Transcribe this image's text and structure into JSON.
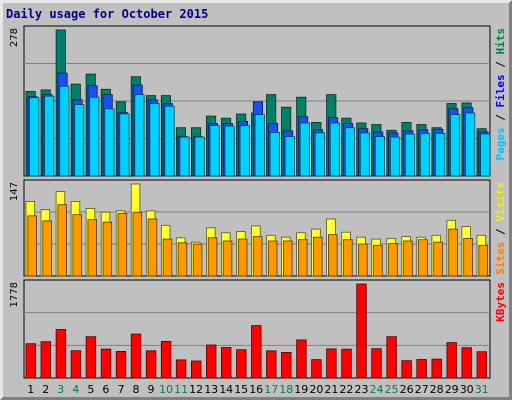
{
  "chart_data": {
    "type": "bar",
    "title": "Daily usage for October 2015",
    "days": [
      "1",
      "2",
      "3",
      "4",
      "5",
      "6",
      "7",
      "8",
      "9",
      "10",
      "11",
      "12",
      "13",
      "14",
      "15",
      "16",
      "17",
      "18",
      "19",
      "20",
      "21",
      "22",
      "23",
      "24",
      "25",
      "26",
      "27",
      "28",
      "29",
      "30",
      "31"
    ],
    "weekend_days": [
      "3",
      "4",
      "10",
      "11",
      "17",
      "18",
      "24",
      "25",
      "31"
    ],
    "panels": [
      {
        "name": "hits-files-pages",
        "max_label": "278",
        "ymax": 278,
        "right_labels": [
          {
            "text": "Pages",
            "color": "#00c8ff"
          },
          {
            "text": " / ",
            "color": "#000000"
          },
          {
            "text": "Files",
            "color": "#0000ff"
          },
          {
            "text": " / ",
            "color": "#000000"
          },
          {
            "text": "Hits",
            "color": "#008040"
          }
        ],
        "series": [
          {
            "name": "Hits",
            "color": "#008066",
            "values": [
              161,
              164,
              278,
              175,
              194,
              165,
              141,
              189,
              153,
              153,
              92,
              92,
              114,
              110,
              118,
              120,
              155,
              131,
              150,
              102,
              155,
              110,
              101,
              98,
              87,
              102,
              98,
              92,
              138,
              139,
              90
            ]
          },
          {
            "name": "Files",
            "color": "#1a4ff0",
            "values": [
              151,
              155,
              196,
              145,
              172,
              155,
              121,
              173,
              145,
              138,
              75,
              75,
              100,
              100,
              104,
              141,
              100,
              86,
              113,
              88,
              111,
              100,
              90,
              84,
              82,
              86,
              88,
              89,
              128,
              130,
              84
            ]
          },
          {
            "name": "Pages",
            "color": "#00d2ff",
            "values": [
              149,
              152,
              171,
              136,
              150,
              128,
              118,
              155,
              138,
              133,
              74,
              74,
              96,
              95,
              96,
              117,
              83,
              75,
              101,
              82,
              101,
              92,
              82,
              75,
              74,
              80,
              81,
              81,
              117,
              120,
              80
            ]
          }
        ]
      },
      {
        "name": "visits-sites",
        "max_label": "147",
        "ymax": 147,
        "right_labels": [
          {
            "text": "Sites",
            "color": "#ff8000"
          },
          {
            "text": " / ",
            "color": "#000000"
          },
          {
            "text": "Visits",
            "color": "#f0f000"
          }
        ],
        "series": [
          {
            "name": "Visits",
            "color": "#ffff33",
            "values": [
              119,
              106,
              135,
              119,
              108,
              102,
              104,
              147,
              104,
              81,
              61,
              54,
              77,
              69,
              71,
              80,
              65,
              62,
              69,
              75,
              91,
              70,
              62,
              59,
              60,
              63,
              62,
              65,
              89,
              79,
              65
            ]
          },
          {
            "name": "Sites",
            "color": "#ff9900",
            "values": [
              96,
              88,
              114,
              98,
              90,
              86,
              100,
              102,
              91,
              59,
              53,
              51,
              61,
              56,
              59,
              63,
              56,
              56,
              58,
              62,
              66,
              58,
              51,
              49,
              52,
              56,
              58,
              54,
              75,
              60,
              49
            ]
          }
        ]
      },
      {
        "name": "kbytes",
        "max_label": "1778",
        "ymax": 1778,
        "right_labels": [
          {
            "text": "KBytes",
            "color": "#ff0000"
          }
        ],
        "series": [
          {
            "name": "KBytes",
            "color": "#ff0000",
            "values": [
              648,
              686,
              917,
              516,
              782,
              546,
              503,
              830,
              515,
              693,
              343,
              322,
              625,
              577,
              535,
              991,
              514,
              485,
              721,
              348,
              550,
              545,
              1778,
              554,
              782,
              328,
              349,
              357,
              669,
              574,
              497
            ]
          }
        ]
      }
    ]
  }
}
